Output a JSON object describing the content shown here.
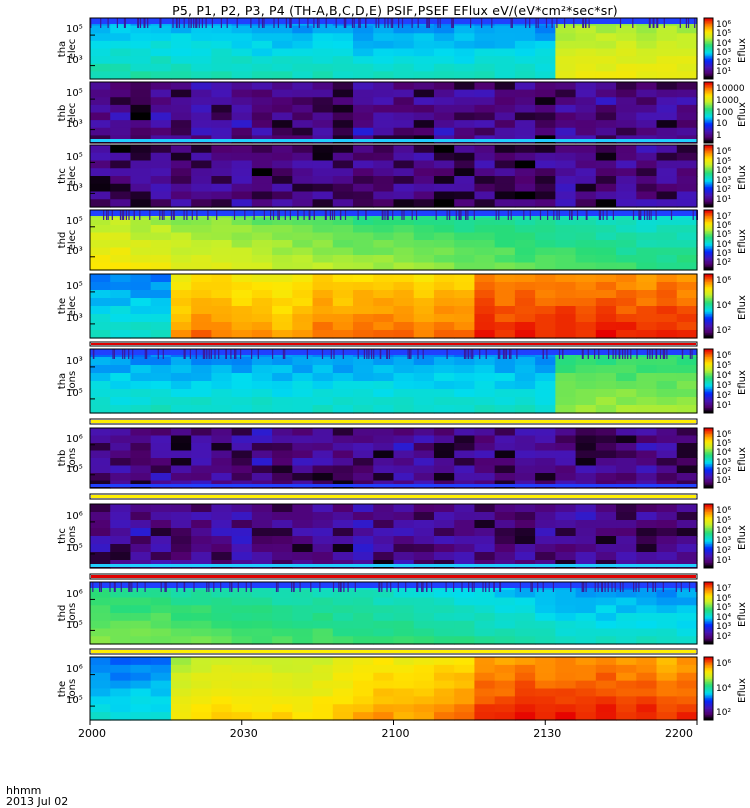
{
  "title": "P5, P1, P2, P3, P4 (TH-A,B,C,D,E) PSIF,PSEF EFlux eV/(eV*cm²*sec*sr)",
  "footer": {
    "label": "hhmm",
    "date": "2013 Jul 02"
  },
  "colorbar_label": "Eflux",
  "panels": [
    {
      "name": "tha elec",
      "ylabel": [
        "tha",
        "elec"
      ],
      "ytick_labels": [
        "10⁵",
        "10³"
      ],
      "cbar_ticks": [
        "10⁶",
        "10⁵",
        "10⁴",
        "10³",
        "10²",
        "10¹"
      ]
    },
    {
      "name": "thb elec",
      "ylabel": [
        "thb",
        "elec"
      ],
      "ytick_labels": [
        "10⁵",
        "10³"
      ],
      "cbar_ticks": [
        "10000",
        "1000",
        "100",
        "10",
        "1"
      ]
    },
    {
      "name": "thc elec",
      "ylabel": [
        "thc",
        "elec"
      ],
      "ytick_labels": [
        "10⁵",
        "10³"
      ],
      "cbar_ticks": [
        "10⁶",
        "10⁵",
        "10⁴",
        "10³",
        "10²",
        "10¹"
      ]
    },
    {
      "name": "thd elec",
      "ylabel": [
        "thd",
        "elec"
      ],
      "ytick_labels": [
        "10⁵",
        "10³"
      ],
      "cbar_ticks": [
        "10⁷",
        "10⁶",
        "10⁵",
        "10⁴",
        "10³",
        "10²"
      ]
    },
    {
      "name": "the elec",
      "ylabel": [
        "the",
        "elec"
      ],
      "ytick_labels": [
        "10⁵",
        "10³"
      ],
      "cbar_ticks": [
        "10⁶",
        "10⁴",
        "10²"
      ]
    },
    {
      "name": "tha ions",
      "ylabel": [
        "tha",
        "ions"
      ],
      "ytick_labels": [
        "10³",
        "10⁵"
      ],
      "cbar_ticks": [
        "10⁶",
        "10⁵",
        "10⁴",
        "10³",
        "10²",
        "10¹"
      ]
    },
    {
      "name": "thb ions",
      "ylabel": [
        "thb",
        "ions"
      ],
      "ytick_labels": [
        "10⁶",
        "10⁵"
      ],
      "cbar_ticks": [
        "10⁶",
        "10⁵",
        "10⁴",
        "10³",
        "10²",
        "10¹"
      ]
    },
    {
      "name": "thc ions",
      "ylabel": [
        "thc",
        "ions"
      ],
      "ytick_labels": [
        "10⁶",
        "10⁵"
      ],
      "cbar_ticks": [
        "10⁶",
        "10⁵",
        "10⁴",
        "10³",
        "10²",
        "10¹"
      ]
    },
    {
      "name": "thd ions",
      "ylabel": [
        "thd",
        "ions"
      ],
      "ytick_labels": [
        "10⁶",
        "10⁵"
      ],
      "cbar_ticks": [
        "10⁷",
        "10⁶",
        "10⁵",
        "10⁴",
        "10³",
        "10²"
      ]
    },
    {
      "name": "the ions",
      "ylabel": [
        "the",
        "ions"
      ],
      "ytick_labels": [
        "10⁶",
        "10⁵"
      ],
      "cbar_ticks": [
        "10⁶",
        "10⁴",
        "10²"
      ]
    }
  ],
  "chart_data": {
    "type": "heatmap",
    "title": "P5, P1, P2, P3, P4 (TH-A,B,C,D,E) PSIF,PSEF EFlux eV/(eV*cm²*sec*sr)",
    "x_tick_labels": [
      "2000",
      "2030",
      "2100",
      "2130",
      "2200"
    ],
    "x_tick_values_min": [
      0,
      30,
      60,
      90,
      120
    ],
    "xlim_min": [
      0,
      120
    ],
    "xlabel": "hhmm",
    "date": "2013 Jul 02",
    "colorscale": "rainbow (black-purple-blue-cyan-green-yellow-orange-red)",
    "colorbar_label": "Eflux",
    "series": [
      {
        "name": "tha elec",
        "levels": [
          0.45,
          0.45,
          0.45,
          0.45,
          0.44,
          0.44,
          0.44,
          0.44,
          0.43,
          0.43,
          0.43,
          0.43,
          0.43,
          0.42,
          0.42,
          0.42,
          0.42,
          0.42,
          0.42,
          0.42,
          0.42,
          0.42,
          0.42,
          0.7,
          0.7,
          0.7,
          0.7,
          0.7,
          0.7,
          0.7
        ],
        "top_band": "blue",
        "change_at_min": 92
      },
      {
        "name": "thb elec",
        "levels": [
          0.1,
          0.12,
          0.08,
          0.15,
          0.1,
          0.12,
          0.1,
          0.14,
          0.12,
          0.1,
          0.08,
          0.12,
          0.1,
          0.15,
          0.1,
          0.12,
          0.1,
          0.14,
          0.1,
          0.12,
          0.1,
          0.12,
          0.08,
          0.12,
          0.1,
          0.14,
          0.1,
          0.12,
          0.1,
          0.12
        ],
        "bottom_band": "cyan"
      },
      {
        "name": "thc elec",
        "levels": [
          0.1,
          0.08,
          0.1,
          0.12,
          0.1,
          0.08,
          0.1,
          0.12,
          0.08,
          0.1,
          0.12,
          0.1,
          0.08,
          0.1,
          0.12,
          0.1,
          0.1,
          0.08,
          0.1,
          0.12,
          0.1,
          0.08,
          0.1,
          0.12,
          0.1,
          0.08,
          0.1,
          0.12,
          0.1,
          0.1
        ]
      },
      {
        "name": "thd elec",
        "levels": [
          0.72,
          0.72,
          0.7,
          0.7,
          0.68,
          0.68,
          0.67,
          0.66,
          0.65,
          0.64,
          0.63,
          0.62,
          0.61,
          0.6,
          0.6,
          0.6,
          0.59,
          0.58,
          0.57,
          0.56,
          0.56,
          0.55,
          0.55,
          0.54,
          0.53,
          0.52,
          0.51,
          0.5,
          0.5,
          0.5
        ],
        "top_band": "blue"
      },
      {
        "name": "the elec",
        "levels": [
          0.42,
          0.42,
          0.42,
          0.42,
          0.82,
          0.86,
          0.84,
          0.82,
          0.82,
          0.8,
          0.82,
          0.86,
          0.84,
          0.86,
          0.86,
          0.86,
          0.84,
          0.86,
          0.86,
          0.94,
          0.92,
          0.94,
          0.93,
          0.94,
          0.92,
          0.94,
          0.93,
          0.92,
          0.94,
          0.92
        ]
      },
      {
        "name": "tha ions",
        "levels": [
          0.42,
          0.42,
          0.42,
          0.42,
          0.42,
          0.42,
          0.42,
          0.42,
          0.42,
          0.42,
          0.42,
          0.42,
          0.42,
          0.42,
          0.42,
          0.42,
          0.42,
          0.42,
          0.42,
          0.42,
          0.42,
          0.42,
          0.42,
          0.6,
          0.6,
          0.6,
          0.6,
          0.6,
          0.6,
          0.6
        ],
        "top_band": "blue",
        "change_at_min": 92
      },
      {
        "name": "thb ions",
        "levels": [
          0.1,
          0.12,
          0.1,
          0.14,
          0.1,
          0.12,
          0.1,
          0.12,
          0.14,
          0.1,
          0.12,
          0.1,
          0.1,
          0.12,
          0.1,
          0.14,
          0.12,
          0.1,
          0.1,
          0.12,
          0.1,
          0.12,
          0.1,
          0.14,
          0.1,
          0.12,
          0.1,
          0.12,
          0.1,
          0.1
        ],
        "bottom_band": "blue"
      },
      {
        "name": "thc ions",
        "levels": [
          0.12,
          0.1,
          0.14,
          0.1,
          0.12,
          0.1,
          0.12,
          0.14,
          0.1,
          0.12,
          0.1,
          0.12,
          0.1,
          0.14,
          0.1,
          0.12,
          0.1,
          0.12,
          0.14,
          0.1,
          0.12,
          0.1,
          0.12,
          0.1,
          0.14,
          0.1,
          0.12,
          0.1,
          0.12,
          0.1
        ],
        "bottom_band": "cyan"
      },
      {
        "name": "thd ions",
        "levels": [
          0.58,
          0.58,
          0.57,
          0.57,
          0.56,
          0.56,
          0.55,
          0.55,
          0.54,
          0.54,
          0.53,
          0.53,
          0.52,
          0.52,
          0.51,
          0.5,
          0.5,
          0.49,
          0.48,
          0.47,
          0.46,
          0.45,
          0.44,
          0.43,
          0.42,
          0.42,
          0.42,
          0.42,
          0.42,
          0.42
        ],
        "top_band": "blue"
      },
      {
        "name": "the ions",
        "levels": [
          0.4,
          0.4,
          0.4,
          0.4,
          0.72,
          0.74,
          0.76,
          0.76,
          0.75,
          0.75,
          0.74,
          0.75,
          0.78,
          0.8,
          0.82,
          0.8,
          0.82,
          0.84,
          0.85,
          0.92,
          0.92,
          0.94,
          0.93,
          0.94,
          0.93,
          0.94,
          0.92,
          0.93,
          0.9,
          0.92
        ]
      }
    ]
  }
}
